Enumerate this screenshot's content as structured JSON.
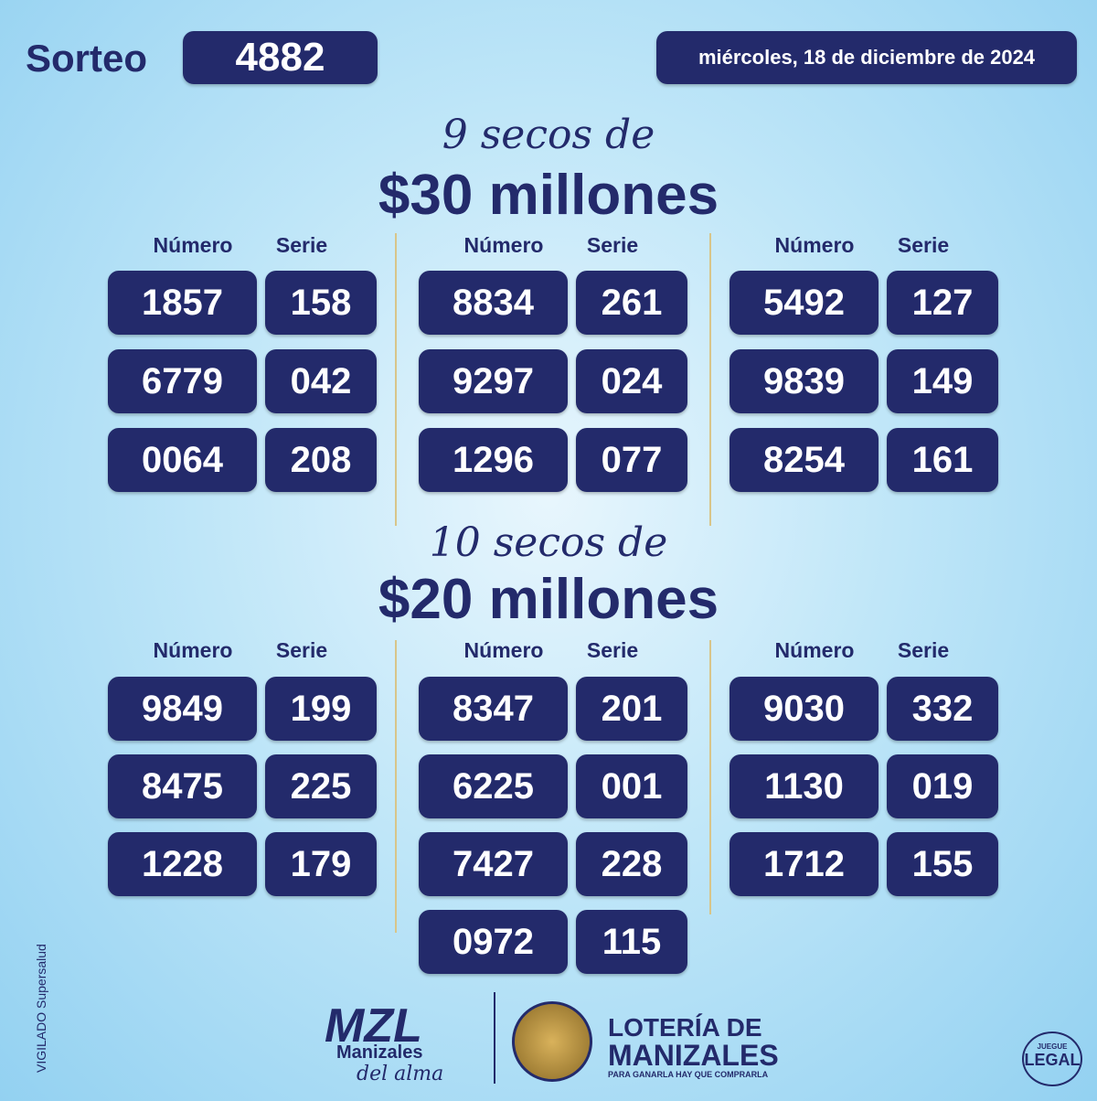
{
  "header": {
    "label": "Sorteo",
    "draw_number": "4882",
    "date": "miércoles, 18 de diciembre de 2024"
  },
  "sections": [
    {
      "lead": "9 secos de",
      "prize": "$30 millones",
      "columns": [
        {
          "number_header": "Número",
          "series_header": "Serie",
          "rows": [
            [
              "1857",
              "158"
            ],
            [
              "6779",
              "042"
            ],
            [
              "0064",
              "208"
            ]
          ]
        },
        {
          "number_header": "Número",
          "series_header": "Serie",
          "rows": [
            [
              "8834",
              "261"
            ],
            [
              "9297",
              "024"
            ],
            [
              "1296",
              "077"
            ]
          ]
        },
        {
          "number_header": "Número",
          "series_header": "Serie",
          "rows": [
            [
              "5492",
              "127"
            ],
            [
              "9839",
              "149"
            ],
            [
              "8254",
              "161"
            ]
          ]
        }
      ]
    },
    {
      "lead": "10 secos de",
      "prize": "$20 millones",
      "columns": [
        {
          "number_header": "Número",
          "series_header": "Serie",
          "rows": [
            [
              "9849",
              "199"
            ],
            [
              "8475",
              "225"
            ],
            [
              "1228",
              "179"
            ]
          ]
        },
        {
          "number_header": "Número",
          "series_header": "Serie",
          "rows": [
            [
              "8347",
              "201"
            ],
            [
              "6225",
              "001"
            ],
            [
              "7427",
              "228"
            ],
            [
              "0972",
              "115"
            ]
          ]
        },
        {
          "number_header": "Número",
          "series_header": "Serie",
          "rows": [
            [
              "9030",
              "332"
            ],
            [
              "1130",
              "019"
            ],
            [
              "1712",
              "155"
            ]
          ]
        }
      ]
    }
  ],
  "footer": {
    "brand": "MZL",
    "brand_city": "Manizales",
    "brand_tagline": "del alma",
    "lottery_line1": "LOTERÍA DE",
    "lottery_line2": "MANIZALES",
    "lottery_slogan": "PARA GANARLA HAY QUE COMPRARLA",
    "regulator": "VIGILADO Supersalud",
    "badge_top": "JUEGUE",
    "badge_main": "LEGAL"
  }
}
